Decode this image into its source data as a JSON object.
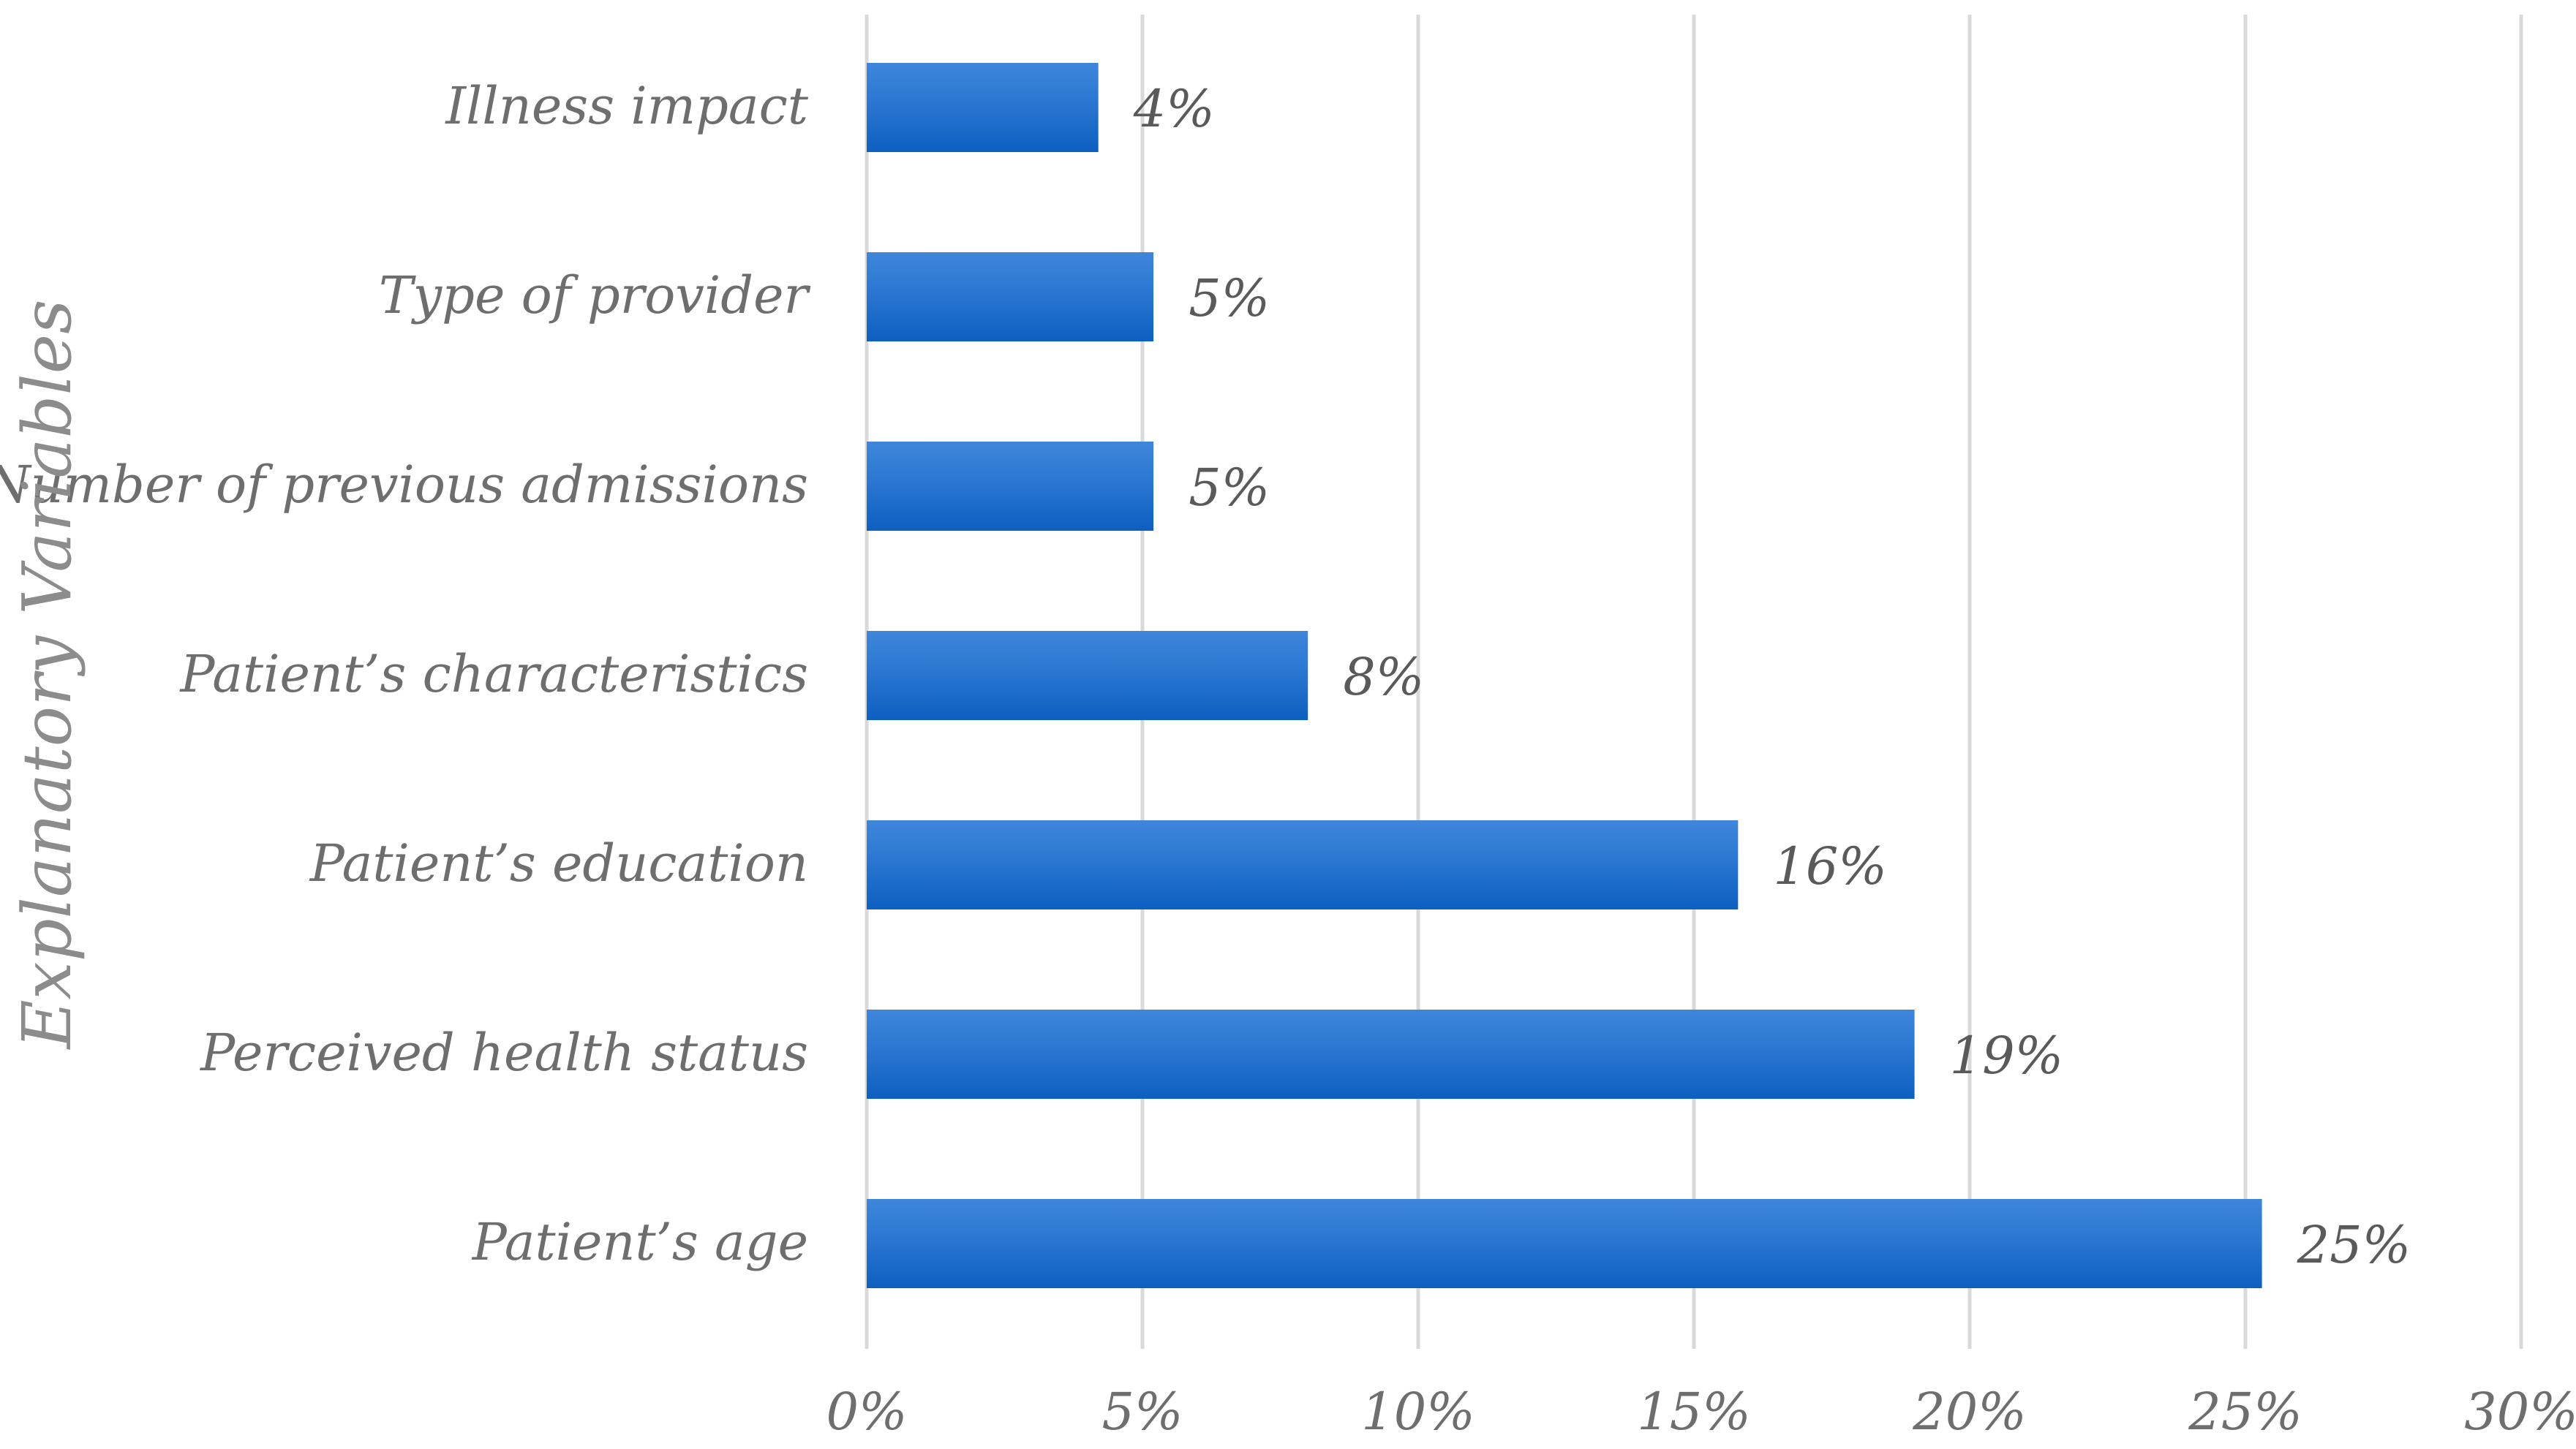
{
  "chart_data": {
    "type": "bar",
    "orientation": "horizontal",
    "title": "",
    "xlabel": "",
    "ylabel": "Explanatory Variables",
    "categories": [
      "Illness impact",
      "Type of provider",
      "Number of previous admissions",
      "Patient’s characteristics",
      "Patient’s education",
      "Perceived health status",
      "Patient’s age"
    ],
    "values": [
      4.2,
      5.2,
      5.2,
      8.0,
      15.8,
      19.0,
      25.3
    ],
    "data_labels": [
      "4%",
      "5%",
      "5%",
      "8%",
      "16%",
      "19%",
      "25%"
    ],
    "xlim": [
      0,
      30
    ],
    "x_ticks": [
      0,
      5,
      10,
      15,
      20,
      25,
      30
    ],
    "x_tick_labels": [
      "0%",
      "5%",
      "10%",
      "15%",
      "20%",
      "25%",
      "30%"
    ],
    "grid": "vertical",
    "legend": "none",
    "colors": {
      "bar": "#1466c8",
      "bar_light": "#3f86db",
      "grid": "#d9d9d9",
      "text": "#6e6e6e"
    }
  }
}
